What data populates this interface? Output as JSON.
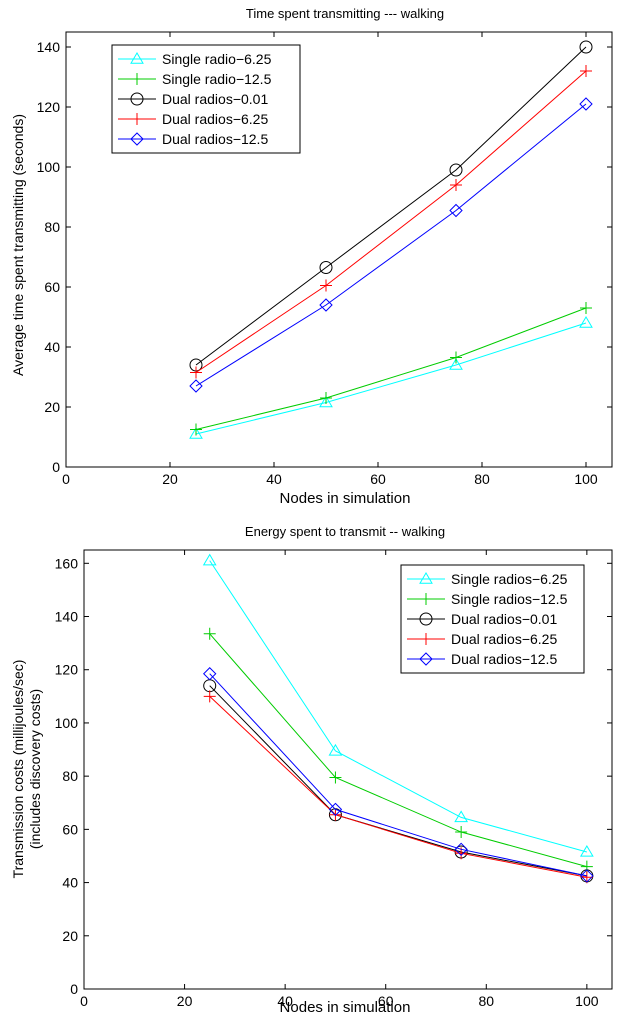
{
  "chart_data": [
    {
      "type": "line",
      "title": "Time spent transmitting --- walking",
      "xlabel": "Nodes in simulation",
      "ylabel": "Average time spent transmitting  (seconds)",
      "xlim": [
        0,
        105
      ],
      "ylim": [
        0,
        145
      ],
      "xticks": [
        0,
        20,
        40,
        60,
        80,
        100
      ],
      "yticks": [
        0,
        20,
        40,
        60,
        80,
        100,
        120,
        140
      ],
      "x": [
        25,
        50,
        75,
        100
      ],
      "legend_position": "top-left",
      "grid": false,
      "series": [
        {
          "name": "Single radio−6.25",
          "color": "#00ffff",
          "marker": "triangle",
          "values": [
            11,
            21.5,
            34,
            48
          ]
        },
        {
          "name": "Single radio−12.5",
          "color": "#00cc00",
          "marker": "plus",
          "values": [
            12.5,
            23,
            36.5,
            53
          ]
        },
        {
          "name": "Dual radios−0.01",
          "color": "#000000",
          "marker": "circle",
          "values": [
            34,
            66.5,
            99,
            140
          ]
        },
        {
          "name": "Dual radios−6.25",
          "color": "#ff0000",
          "marker": "plus",
          "values": [
            31.5,
            60.5,
            94,
            132
          ]
        },
        {
          "name": "Dual radios−12.5",
          "color": "#0000ff",
          "marker": "diamond",
          "values": [
            27,
            54,
            85.5,
            121
          ]
        }
      ]
    },
    {
      "type": "line",
      "title": "Energy spent to transmit -- walking",
      "xlabel": "Nodes in simulation",
      "ylabel": "Transmission costs (millijoules/sec)",
      "ylabel2": "(includes discovery costs)",
      "xlim": [
        0,
        105
      ],
      "ylim": [
        0,
        165
      ],
      "xticks": [
        0,
        20,
        40,
        60,
        80,
        100
      ],
      "yticks": [
        0,
        20,
        40,
        60,
        80,
        100,
        120,
        140,
        160
      ],
      "x": [
        25,
        50,
        75,
        100
      ],
      "legend_position": "top-right",
      "grid": false,
      "series": [
        {
          "name": "Single radios−6.25",
          "color": "#00ffff",
          "marker": "triangle",
          "values": [
            161,
            89.5,
            64.5,
            51.5
          ]
        },
        {
          "name": "Single radios−12.5",
          "color": "#00cc00",
          "marker": "plus",
          "values": [
            133.5,
            79.5,
            59,
            46
          ]
        },
        {
          "name": "Dual radios−0.01",
          "color": "#000000",
          "marker": "circle",
          "values": [
            114,
            65.5,
            51.5,
            42.5
          ]
        },
        {
          "name": "Dual radios−6.25",
          "color": "#ff0000",
          "marker": "plus",
          "values": [
            110,
            65.5,
            51,
            42
          ]
        },
        {
          "name": "Dual radios−12.5",
          "color": "#0000ff",
          "marker": "diamond",
          "values": [
            118.5,
            67.5,
            52.5,
            42.5
          ]
        }
      ]
    }
  ]
}
